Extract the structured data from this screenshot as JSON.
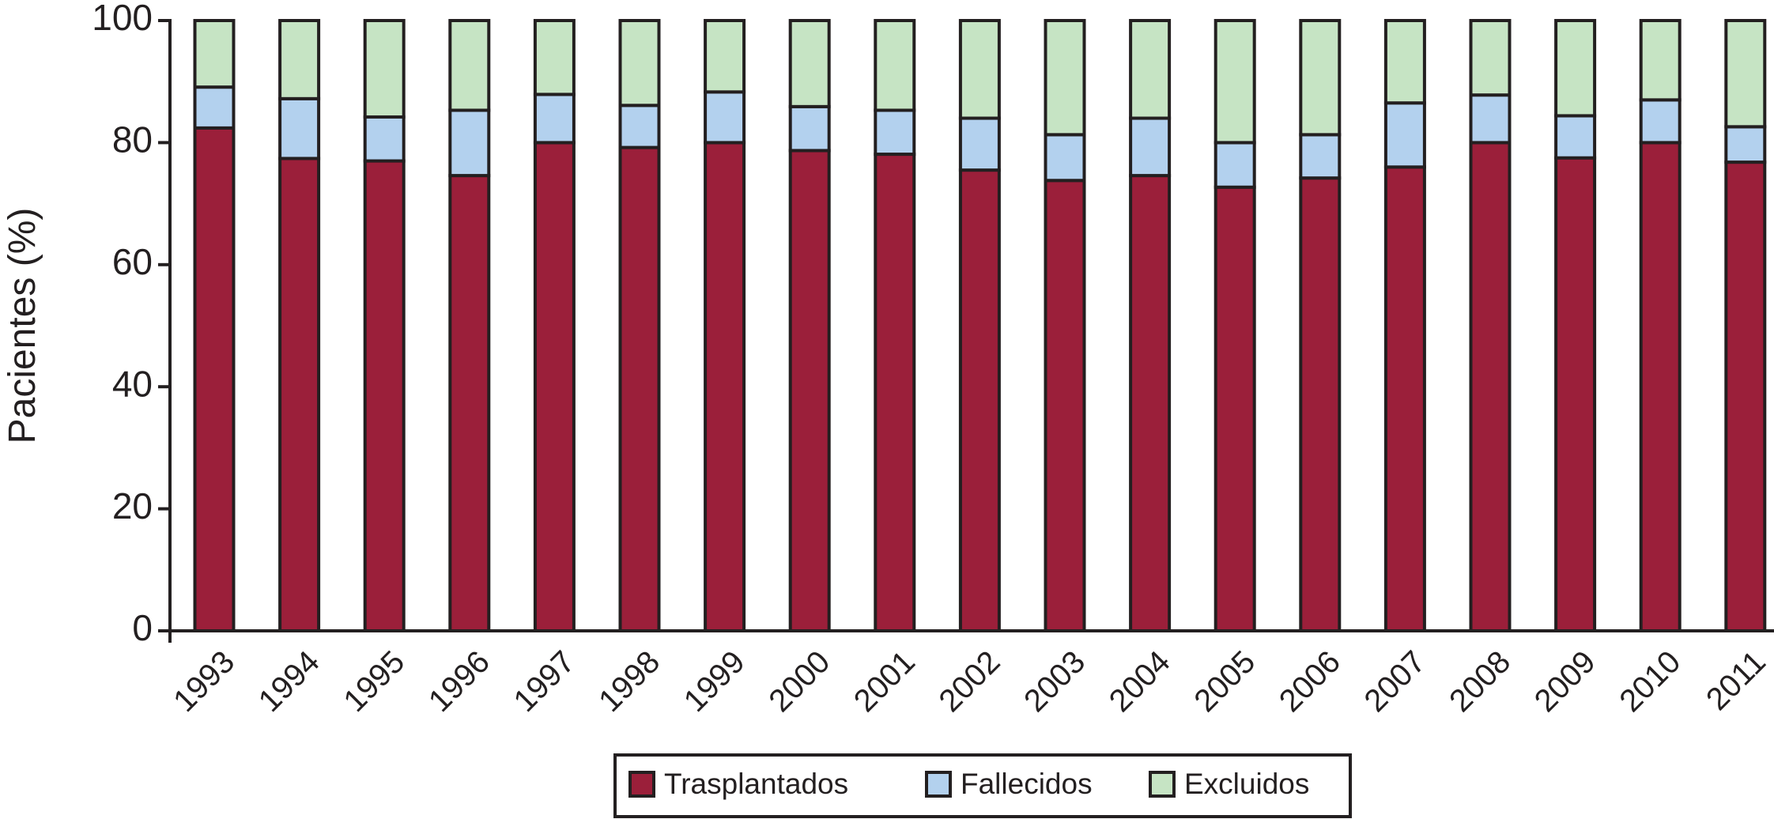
{
  "chart_data": {
    "type": "stacked-bar",
    "y_label": "Pacientes (%)",
    "categories": [
      "1993",
      "1994",
      "1995",
      "1996",
      "1997",
      "1998",
      "1999",
      "2000",
      "2001",
      "2002",
      "2003",
      "2004",
      "2005",
      "2006",
      "2007",
      "2008",
      "2009",
      "2010",
      "2011"
    ],
    "series": [
      {
        "name": "Trasplantados",
        "color": "#9b1f3a",
        "values": [
          82.4,
          77.4,
          77.0,
          74.6,
          80.0,
          79.2,
          80.0,
          78.7,
          78.1,
          75.5,
          73.8,
          74.6,
          72.7,
          74.2,
          76.0,
          80.0,
          77.5,
          80.0,
          76.8
        ]
      },
      {
        "name": "Fallecidos",
        "color": "#b3d1ee",
        "values": [
          6.7,
          9.8,
          7.2,
          10.7,
          7.9,
          6.9,
          8.3,
          7.2,
          7.2,
          8.5,
          7.5,
          9.4,
          7.3,
          7.1,
          10.5,
          7.8,
          6.9,
          7.0,
          5.8
        ]
      },
      {
        "name": "Excluidos",
        "color": "#c6e4c4",
        "values": [
          10.9,
          12.8,
          15.8,
          14.7,
          12.1,
          13.9,
          11.7,
          14.1,
          14.7,
          16.0,
          18.7,
          16.0,
          20.0,
          18.7,
          13.5,
          12.2,
          15.6,
          13.0,
          17.4
        ]
      }
    ],
    "ylim": [
      0,
      100
    ],
    "yticks": [
      0,
      20,
      40,
      60,
      80,
      100
    ]
  }
}
